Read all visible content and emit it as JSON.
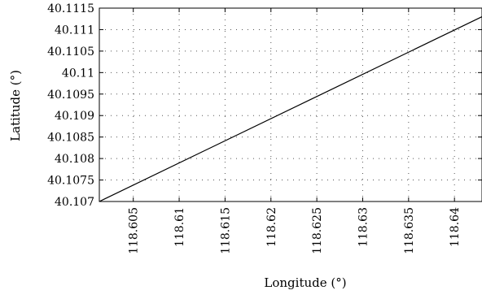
{
  "chart_data": {
    "type": "line",
    "xlabel": "Longitude (°)",
    "ylabel": "Latitude (°)",
    "xlim": [
      118.6013,
      118.643
    ],
    "ylim": [
      40.107,
      40.1115
    ],
    "xticks": [
      118.605,
      118.61,
      118.615,
      118.62,
      118.625,
      118.63,
      118.635,
      118.64
    ],
    "xtick_labels": [
      "118.605",
      "118.61",
      "118.615",
      "118.62",
      "118.625",
      "118.63",
      "118.635",
      "118.64"
    ],
    "yticks": [
      40.107,
      40.1075,
      40.108,
      40.1085,
      40.109,
      40.1095,
      40.11,
      40.1105,
      40.111,
      40.1115
    ],
    "ytick_labels": [
      "40.107",
      "40.1075",
      "40.108",
      "40.1085",
      "40.109",
      "40.1095",
      "40.11",
      "40.1105",
      "40.111",
      "40.1115"
    ],
    "grid": true,
    "series": [
      {
        "x": [
          118.6013,
          118.643
        ],
        "y": [
          40.107,
          40.1113
        ]
      }
    ]
  }
}
